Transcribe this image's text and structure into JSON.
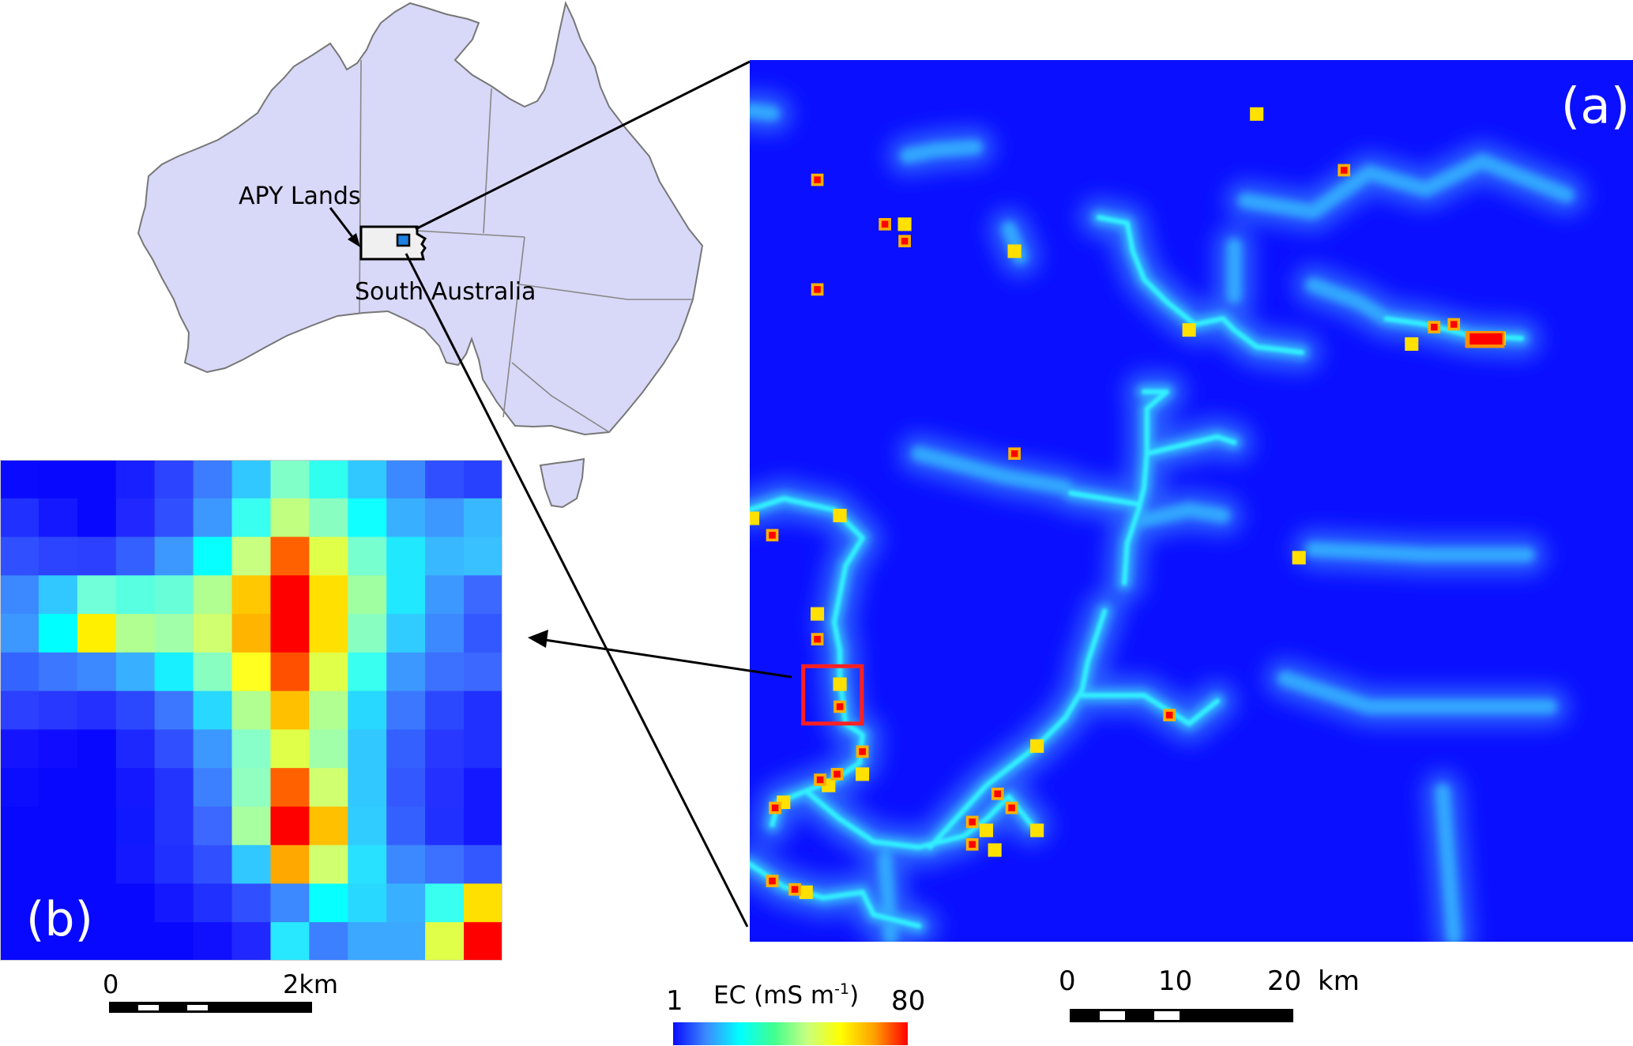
{
  "inset_map": {
    "region_label": "APY Lands",
    "state_label": "South Australia",
    "land_color": "#d8d8f8",
    "apy_fill": "#f0f0f0",
    "study_area_color": "#1e80e0"
  },
  "panel_a": {
    "label": "(a)",
    "background_color": "#0a10ff",
    "highlight_box_color": "#ff2020"
  },
  "panel_b": {
    "label": "(b)",
    "ec_grid_colors": [
      [
        "#0a0aff",
        "#0808ff",
        "#0808ff",
        "#1820ff",
        "#2c44ff",
        "#3c7cff",
        "#30c8ff",
        "#80ffc8",
        "#30fff0",
        "#30c8ff",
        "#3c88ff",
        "#3050ff",
        "#2840ff"
      ],
      [
        "#2030ff",
        "#1418ff",
        "#0808ff",
        "#2028ff",
        "#3050ff",
        "#3c98ff",
        "#38fff0",
        "#c0ff80",
        "#88ffc0",
        "#10ffff",
        "#38b0ff",
        "#3c98ff",
        "#38b8ff"
      ],
      [
        "#3050ff",
        "#2c44ff",
        "#2c40ff",
        "#3460ff",
        "#3c98ff",
        "#08ffff",
        "#c8ff80",
        "#ff6000",
        "#e0ff48",
        "#78ffd0",
        "#20e8ff",
        "#38b8ff",
        "#38c0ff"
      ],
      [
        "#3c88ff",
        "#30c8ff",
        "#70ffd8",
        "#58ffe0",
        "#68ffd8",
        "#b0ff90",
        "#ffc800",
        "#ff0000",
        "#ffe000",
        "#a0ffa0",
        "#20e8ff",
        "#3c98ff",
        "#3c68ff"
      ],
      [
        "#3c98ff",
        "#00ffff",
        "#fff000",
        "#b0ff90",
        "#a0ffa8",
        "#d0ff70",
        "#ffb400",
        "#ff0000",
        "#ffe000",
        "#88ffc0",
        "#30ccff",
        "#3c88ff",
        "#3458ff"
      ],
      [
        "#3464ff",
        "#3c78ff",
        "#3c88ff",
        "#38b0ff",
        "#18f0ff",
        "#88ffc0",
        "#ffff20",
        "#ff5000",
        "#e0ff48",
        "#38fff0",
        "#3c98ff",
        "#3c70ff",
        "#3c68ff"
      ],
      [
        "#2c40ff",
        "#2838ff",
        "#2430ff",
        "#2c48ff",
        "#3c78ff",
        "#28d8ff",
        "#b0ff90",
        "#ffc000",
        "#b0ff90",
        "#28d8ff",
        "#3c78ff",
        "#2c48ff",
        "#2030ff"
      ],
      [
        "#1414ff",
        "#100cff",
        "#0808ff",
        "#1c28ff",
        "#3050ff",
        "#3c98ff",
        "#88ffc8",
        "#e0ff48",
        "#a0ffa8",
        "#30c8ff",
        "#3460ff",
        "#2838ff",
        "#2030ff"
      ],
      [
        "#0c0cff",
        "#0808ff",
        "#0808ff",
        "#1418ff",
        "#2434ff",
        "#3c80ff",
        "#90ffc0",
        "#ff6000",
        "#d0ff70",
        "#30c8ff",
        "#3458ff",
        "#2430ff",
        "#1418ff"
      ],
      [
        "#0808ff",
        "#0808ff",
        "#0808ff",
        "#1018ff",
        "#2434ff",
        "#3c68ff",
        "#a8ffa0",
        "#ff0000",
        "#ffc000",
        "#30ccff",
        "#3460ff",
        "#2030ff",
        "#1418ff"
      ],
      [
        "#0808ff",
        "#0808ff",
        "#0808ff",
        "#1418ff",
        "#2030ff",
        "#3050ff",
        "#30c8ff",
        "#ffa800",
        "#d0ff70",
        "#28e0ff",
        "#3c88ff",
        "#3c70ff",
        "#3458ff"
      ],
      [
        "#0808ff",
        "#0808ff",
        "#0808ff",
        "#0808ff",
        "#1418ff",
        "#2030ff",
        "#3050ff",
        "#3c88ff",
        "#08ffff",
        "#28d8ff",
        "#38b0ff",
        "#38fff0",
        "#ffe000"
      ],
      [
        "#0808ff",
        "#0808ff",
        "#0808ff",
        "#0808ff",
        "#0808ff",
        "#1010ff",
        "#2028ff",
        "#28e8ff",
        "#3c80ff",
        "#3ca8ff",
        "#3ca8ff",
        "#e0ff48",
        "#ff0000"
      ]
    ]
  },
  "legend": {
    "min_label": "1",
    "max_label": "80",
    "title_main": "EC (mS m",
    "title_sup": "-1",
    "title_end": ")",
    "colormap": [
      "#0a0aff",
      "#3c8cff",
      "#00ffff",
      "#40ff90",
      "#c8ff80",
      "#ffff00",
      "#ffa000",
      "#ff0000"
    ]
  },
  "scale_bar_a": {
    "labels": [
      "0",
      "10",
      "20"
    ],
    "unit": "km"
  },
  "scale_bar_b": {
    "labels": [
      "0",
      "2km"
    ]
  }
}
